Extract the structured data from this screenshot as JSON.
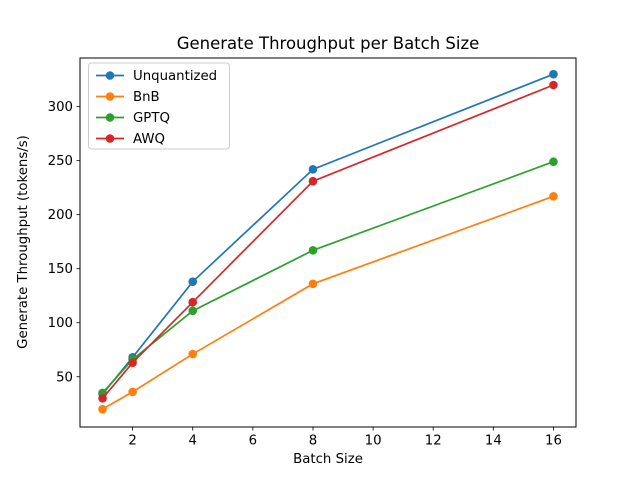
{
  "chart_data": {
    "type": "line",
    "title": "Generate Throughput per Batch Size",
    "xlabel": "Batch Size",
    "ylabel": "Generate Throughput (tokens/s)",
    "x": [
      1,
      2,
      4,
      8,
      16
    ],
    "series": [
      {
        "name": "Unquantized",
        "color": "#1f77b4",
        "values": [
          34,
          68,
          138,
          242,
          330
        ]
      },
      {
        "name": "BnB",
        "color": "#ff7f0e",
        "values": [
          20,
          36,
          71,
          136,
          217
        ]
      },
      {
        "name": "GPTQ",
        "color": "#2ca02c",
        "values": [
          35,
          66,
          111,
          167,
          249
        ]
      },
      {
        "name": "AWQ",
        "color": "#d62728",
        "values": [
          30,
          63,
          119,
          231,
          320
        ]
      }
    ],
    "xticks": [
      2,
      4,
      6,
      8,
      10,
      12,
      14,
      16
    ],
    "yticks": [
      50,
      100,
      150,
      200,
      250,
      300
    ],
    "xlim": [
      0.25,
      16.75
    ],
    "ylim": [
      3.5,
      345
    ],
    "grid": false,
    "legend_position": "upper left",
    "marker": "o",
    "colors": {
      "axes": "#000000",
      "background": "#ffffff",
      "legend_border": "#cccccc"
    }
  }
}
